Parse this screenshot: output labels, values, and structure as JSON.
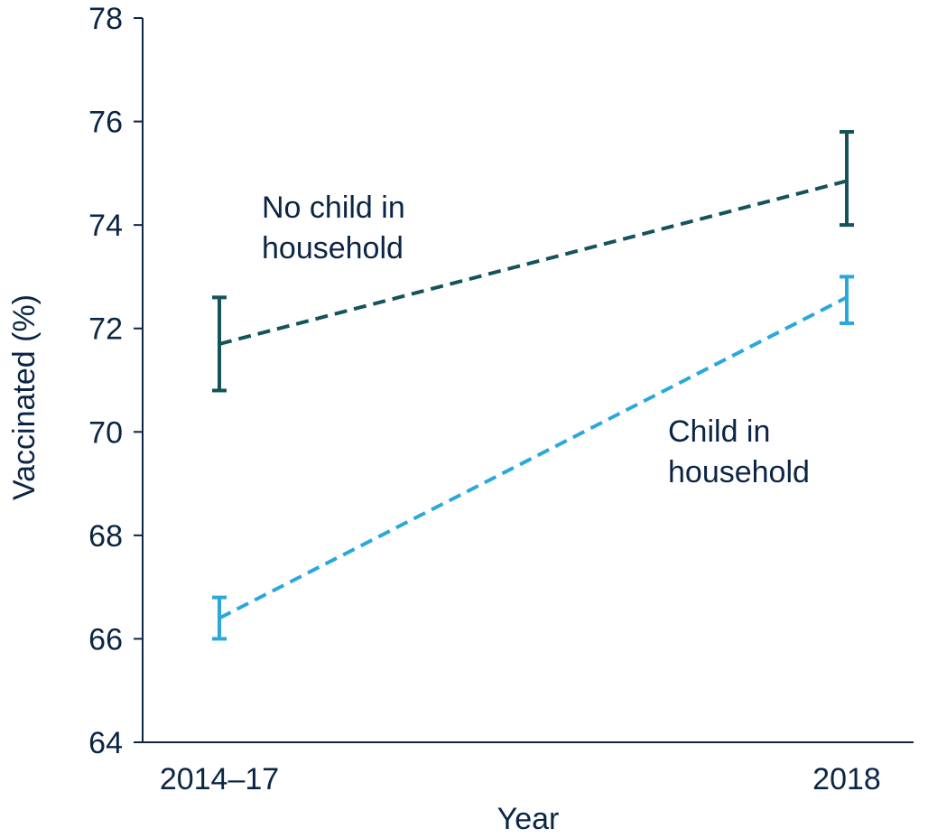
{
  "chart_data": {
    "type": "line",
    "title": "",
    "xlabel": "Year",
    "ylabel": "Vaccinated (%)",
    "categories": [
      "2014–17",
      "2018"
    ],
    "ylim": [
      64,
      78
    ],
    "yticks": [
      64,
      66,
      68,
      70,
      72,
      74,
      76,
      78
    ],
    "grid": false,
    "legend": "inline labels",
    "line_style": "dashed",
    "error_bars": true,
    "series": [
      {
        "name": "No child in household",
        "label_lines": [
          "No child in",
          "household"
        ],
        "color": "#14535a",
        "values": [
          71.7,
          74.85
        ],
        "lower": [
          70.8,
          74.0
        ],
        "upper": [
          72.6,
          75.8
        ]
      },
      {
        "name": "Child in household",
        "label_lines": [
          "Child in",
          "household"
        ],
        "color": "#2aa8dc",
        "values": [
          66.4,
          72.6
        ],
        "lower": [
          66.0,
          72.1
        ],
        "upper": [
          66.8,
          73.0
        ]
      }
    ]
  }
}
